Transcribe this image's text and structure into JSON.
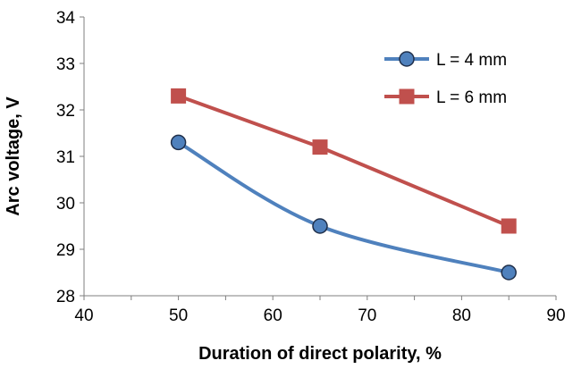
{
  "chart_data": {
    "type": "line",
    "title": "",
    "xlabel": "Duration of direct polarity, %",
    "ylabel": "Arc voltage, V",
    "xlim": [
      40,
      90
    ],
    "ylim": [
      28,
      34
    ],
    "x_ticks": [
      "40",
      "50",
      "60",
      "70",
      "80",
      "90"
    ],
    "y_ticks": [
      "28",
      "29",
      "30",
      "31",
      "32",
      "33",
      "34"
    ],
    "grid": false,
    "legend_position": "top-right",
    "series": [
      {
        "name": "L = 4 mm",
        "color": "#4f81bd",
        "marker": "circle",
        "marker_fill": "#4f81bd",
        "marker_stroke": "#1f2f4a",
        "smooth": true,
        "x": [
          50,
          65,
          85
        ],
        "y": [
          31.3,
          29.5,
          28.5
        ]
      },
      {
        "name": "L = 6 mm",
        "color": "#c0504d",
        "marker": "square",
        "marker_fill": "#c0504d",
        "marker_stroke": "#c0504d",
        "smooth": false,
        "x": [
          50,
          65,
          85
        ],
        "y": [
          32.3,
          31.2,
          29.5
        ]
      }
    ]
  }
}
